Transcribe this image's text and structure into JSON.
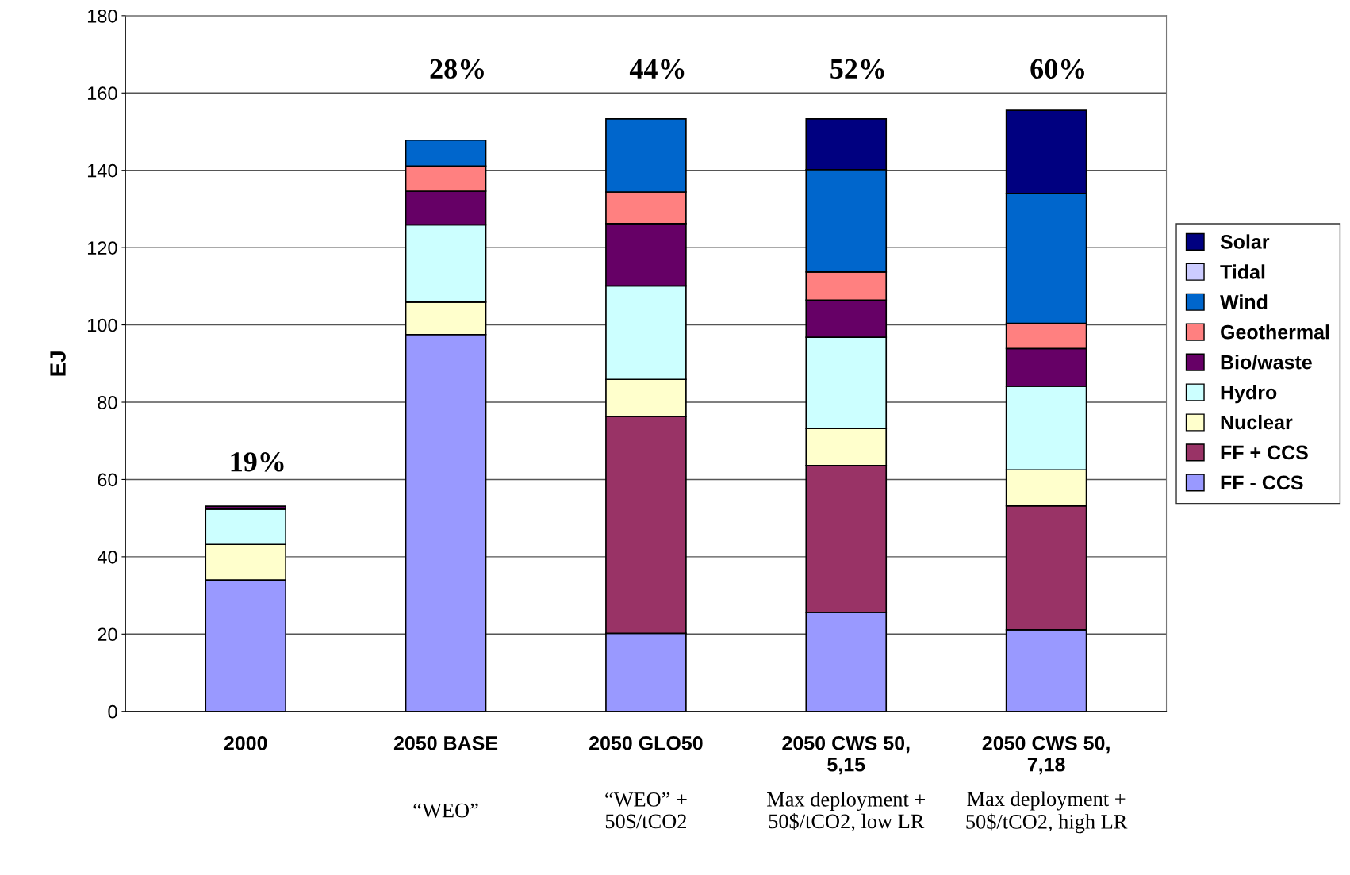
{
  "chart_data": {
    "type": "bar",
    "stacked": true,
    "ylabel": "EJ",
    "categories": [
      "2000",
      "2050 BASE",
      "2050 GLO50",
      "2050 CWS 50,\n5,15",
      "2050 CWS 50,\n7,18"
    ],
    "series": [
      {
        "name": "FF - CCS",
        "color": "#9999ff",
        "values": [
          34.0,
          97.5,
          20.2,
          25.6,
          21.1
        ]
      },
      {
        "name": "FF + CCS",
        "color": "#993366",
        "values": [
          null,
          null,
          56.1,
          38.0,
          32.1
        ]
      },
      {
        "name": "Nuclear",
        "color": "#ffffcc",
        "values": [
          9.2,
          8.4,
          9.6,
          9.6,
          9.3
        ]
      },
      {
        "name": "Hydro",
        "color": "#ccffff",
        "values": [
          9.1,
          20.0,
          24.2,
          23.6,
          21.6
        ]
      },
      {
        "name": "Bio/waste",
        "color": "#660066",
        "values": [
          0.8,
          8.7,
          16.1,
          9.6,
          9.8
        ]
      },
      {
        "name": "Geothermal",
        "color": "#ff8080",
        "values": [
          null,
          6.5,
          8.2,
          7.3,
          6.5
        ]
      },
      {
        "name": "Wind",
        "color": "#0066cc",
        "values": [
          null,
          6.7,
          18.9,
          26.5,
          33.6
        ]
      },
      {
        "name": "Tidal",
        "color": "#ccccff",
        "values": [
          null,
          null,
          null,
          null,
          null
        ]
      },
      {
        "name": "Solar",
        "color": "#000080",
        "values": [
          null,
          null,
          null,
          13.1,
          21.5
        ]
      }
    ],
    "ylim": [
      0,
      180
    ],
    "yticks": [
      0,
      20,
      40,
      60,
      80,
      100,
      120,
      140,
      160,
      180
    ],
    "grid": "y",
    "legend": "right",
    "annotations": [
      "19%",
      "28%",
      "44%",
      "52%",
      "60%",
      "“WEO”",
      "“WEO” +\n50$/tCO2",
      "Max deployment +\n50$/tCO2, low LR",
      "Max deployment +\n50$/tCO2, high LR"
    ]
  }
}
